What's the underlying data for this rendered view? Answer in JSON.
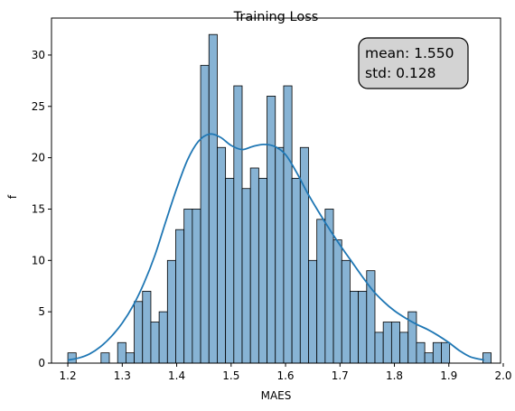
{
  "colors": {
    "bar_fill": "#87b3d4",
    "bar_edge": "#000000",
    "kde_line": "#1f77b4",
    "stats_box_fill": "#d3d3d3",
    "stats_box_edge": "#000000"
  },
  "chart_data": {
    "type": "histogram",
    "title": "Training Loss",
    "xlabel": "MAES",
    "ylabel": "f",
    "xlim": [
      1.17,
      1.995
    ],
    "ylim": [
      0,
      33.6
    ],
    "xticks": [
      1.2,
      1.3,
      1.4,
      1.5,
      1.6,
      1.7,
      1.8,
      1.9,
      2.0
    ],
    "xtick_labels": [
      "1.2",
      "1.3",
      "1.4",
      "1.5",
      "1.6",
      "1.7",
      "1.8",
      "1.9",
      "2.0"
    ],
    "yticks": [
      0,
      5,
      10,
      15,
      20,
      25,
      30
    ],
    "ytick_labels": [
      "0",
      "5",
      "10",
      "15",
      "20",
      "25",
      "30"
    ],
    "grid": false,
    "bins": {
      "start": 1.2,
      "width": 0.01525,
      "counts": [
        1,
        0,
        0,
        0,
        1,
        0,
        2,
        1,
        6,
        7,
        4,
        5,
        10,
        13,
        15,
        15,
        29,
        32,
        21,
        18,
        27,
        17,
        19,
        18,
        26,
        21,
        27,
        18,
        21,
        10,
        14,
        15,
        12,
        10,
        7,
        7,
        9,
        3,
        4,
        4,
        3,
        5,
        2,
        1,
        2,
        2,
        0,
        0,
        0,
        0,
        1
      ]
    },
    "kde": {
      "x": [
        1.2,
        1.22,
        1.24,
        1.26,
        1.28,
        1.3,
        1.32,
        1.34,
        1.36,
        1.38,
        1.4,
        1.42,
        1.44,
        1.46,
        1.48,
        1.5,
        1.52,
        1.54,
        1.56,
        1.58,
        1.6,
        1.62,
        1.64,
        1.66,
        1.68,
        1.7,
        1.72,
        1.74,
        1.76,
        1.78,
        1.8,
        1.82,
        1.84,
        1.86,
        1.88,
        1.9,
        1.92,
        1.94,
        1.965
      ],
      "y": [
        0.3,
        0.5,
        0.9,
        1.6,
        2.6,
        3.9,
        5.6,
        7.8,
        10.5,
        13.8,
        17.0,
        19.8,
        21.6,
        22.3,
        22.0,
        21.2,
        20.8,
        21.1,
        21.3,
        21.1,
        20.3,
        18.6,
        16.6,
        14.8,
        13.1,
        11.5,
        10.0,
        8.5,
        7.1,
        6.0,
        5.1,
        4.4,
        3.8,
        3.3,
        2.7,
        2.0,
        1.2,
        0.6,
        0.3
      ]
    },
    "annotation": {
      "lines": [
        "mean: 1.550",
        "std: 0.128"
      ],
      "placement": "top-right"
    }
  }
}
